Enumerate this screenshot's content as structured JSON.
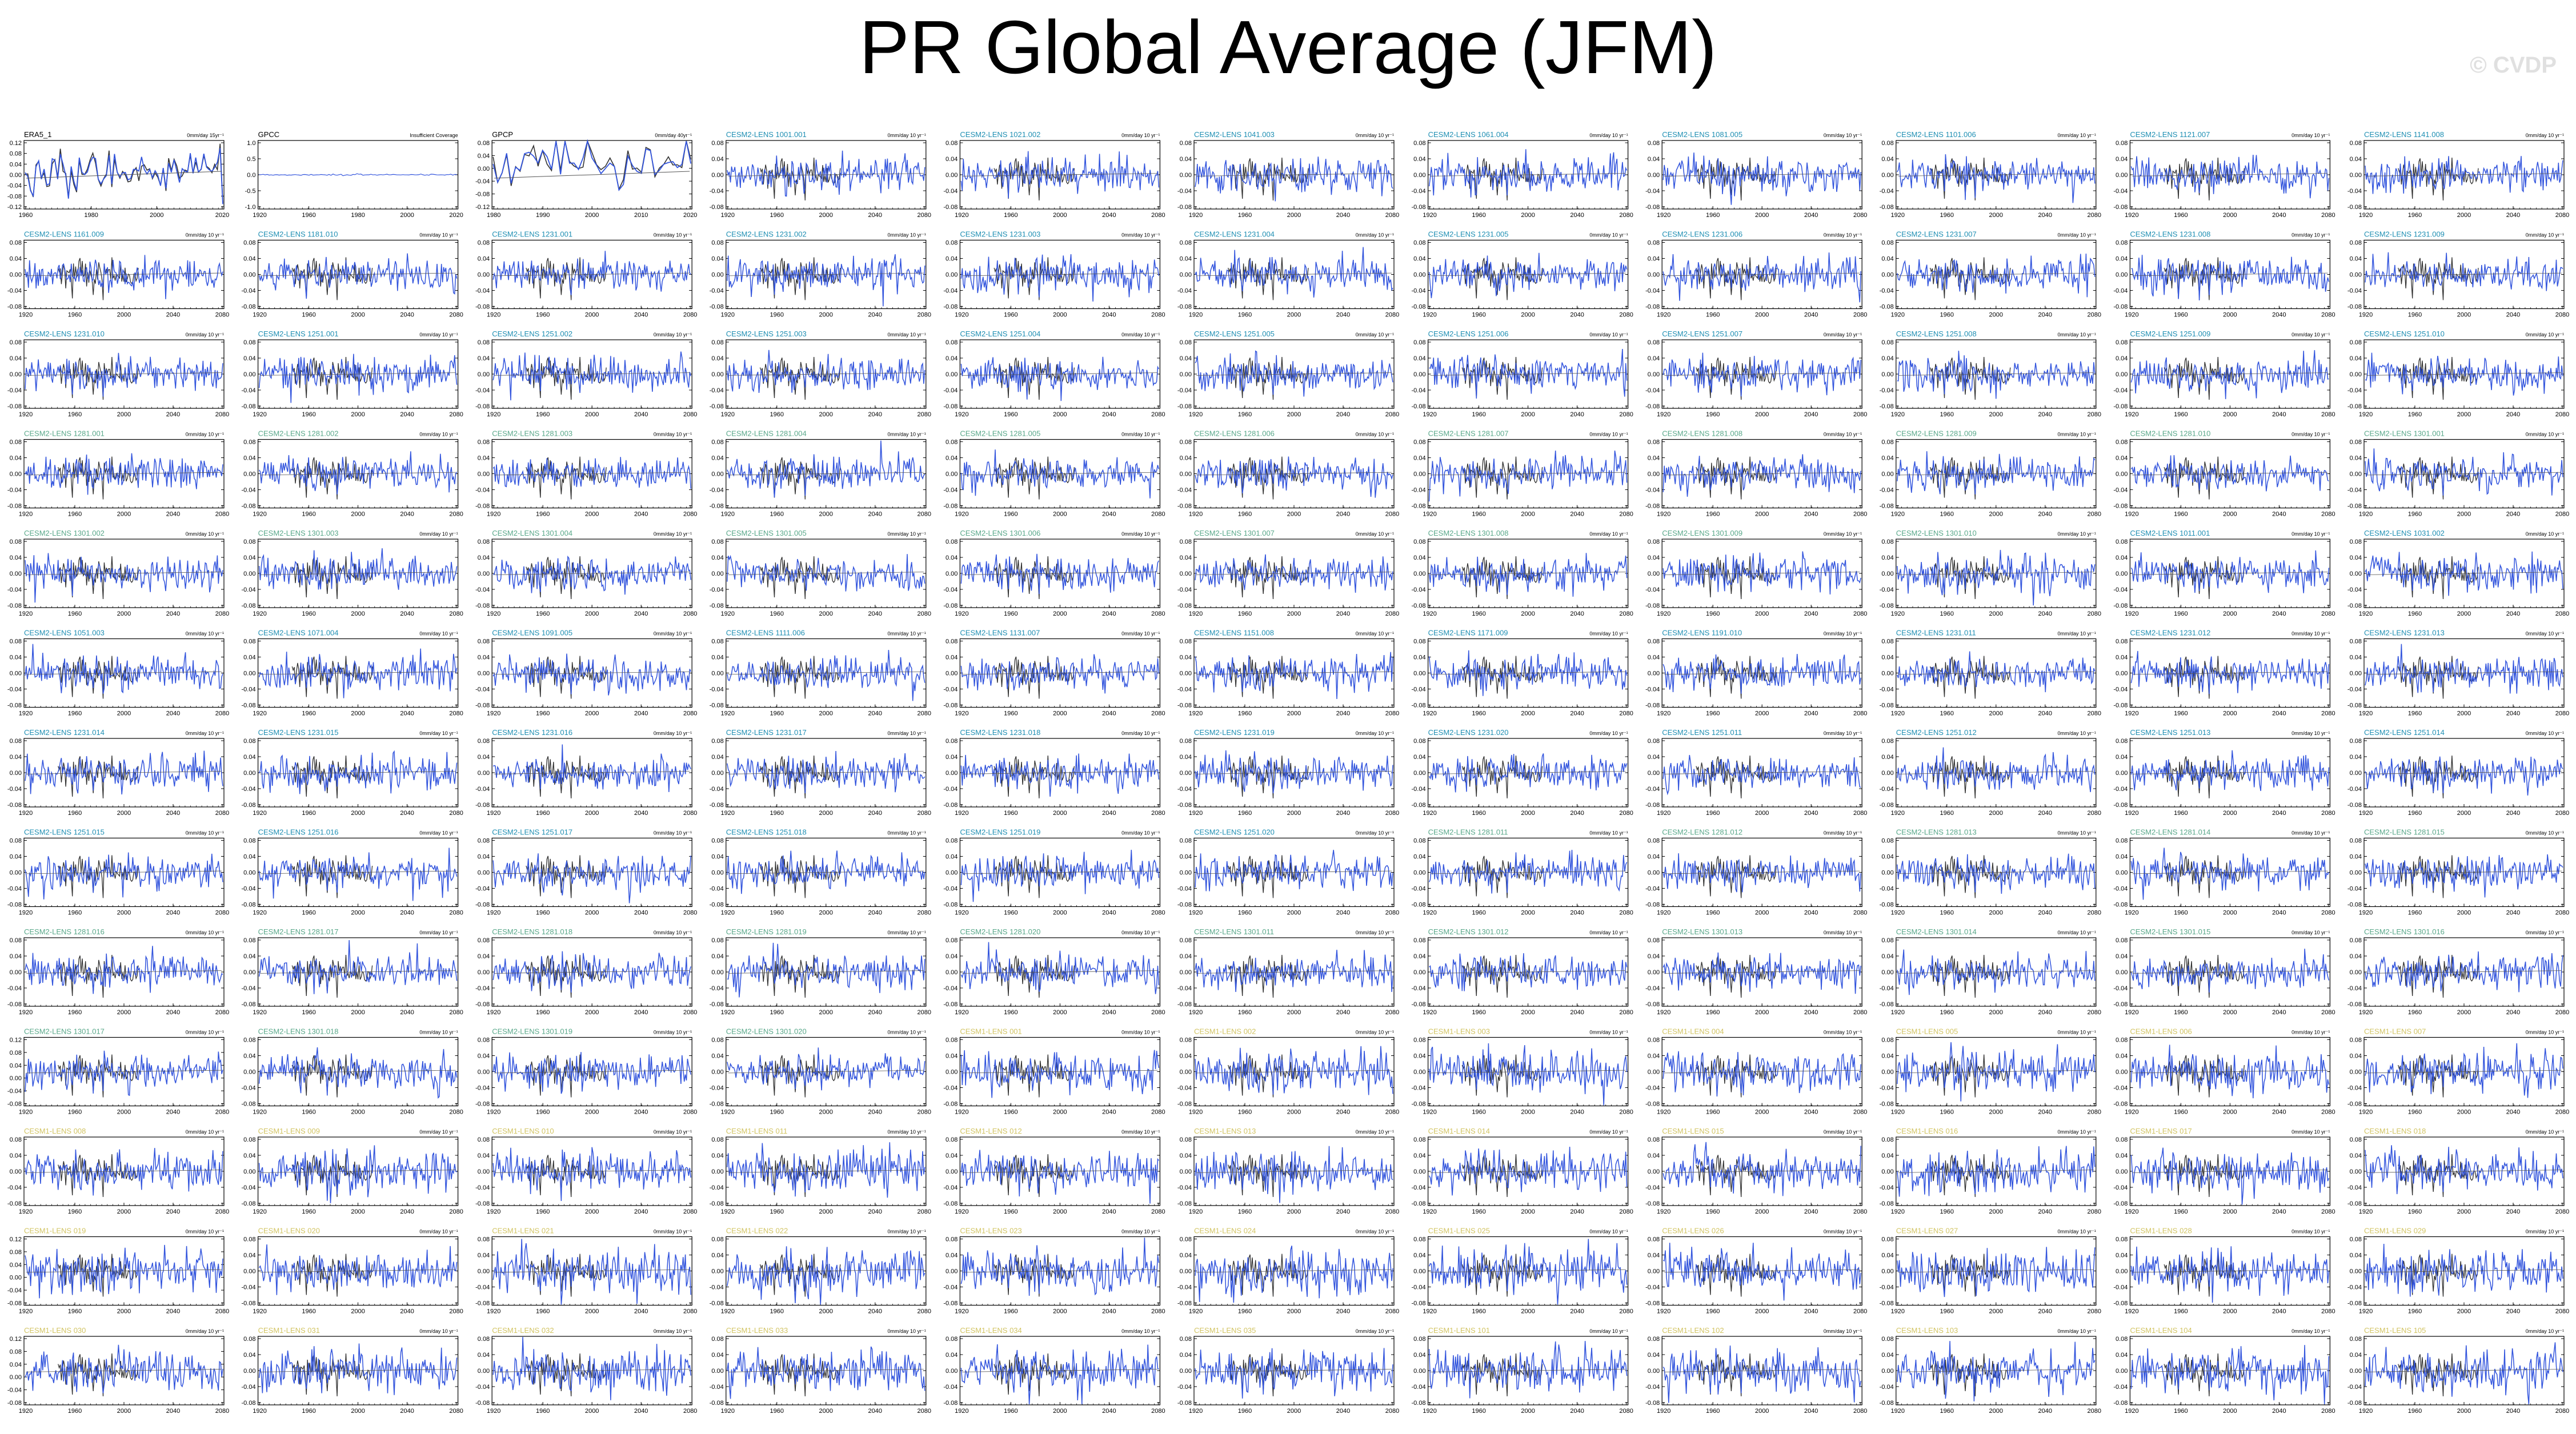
{
  "title": "PR Global Average (JFM)",
  "watermark": "© CVDP",
  "colors": {
    "model_line": "#3355dd",
    "obs_line": "#333333",
    "obs_title": "#000000",
    "lens2_title": "#1f8fb3",
    "lens2_smbb_title": "#59a88a",
    "lens1_title": "#d2c463",
    "axis": "#000000",
    "trend_line": "#555555"
  },
  "units_label": "0mm/day 10 yr⁻¹",
  "observations": [
    {
      "name": "ERA5_1",
      "units": "0mm/day 15yr⁻¹",
      "x_ticks": [
        "1960",
        "1980",
        "2000",
        "2020"
      ],
      "y_ticks": [
        "0.12",
        "0.08",
        "0.04",
        "0.00",
        "-0.04",
        "-0.08",
        "-0.12"
      ],
      "note": ""
    },
    {
      "name": "GPCC",
      "units": "Insufficient Coverage",
      "x_ticks": [
        "1920",
        "1960",
        "1980",
        "2000",
        "2020"
      ],
      "y_ticks": [
        "1.0",
        "0.5",
        "0.0",
        "-0.5",
        "-1.0"
      ],
      "note": ""
    },
    {
      "name": "GPCP",
      "units": "0mm/day 40yr⁻¹",
      "x_ticks": [
        "1980",
        "1990",
        "2000",
        "2010",
        "2020"
      ],
      "y_ticks": [
        "0.08",
        "0.04",
        "0.00",
        "-0.04",
        "-0.08",
        "-0.12"
      ],
      "note": ""
    }
  ],
  "model_x_ticks": [
    "1920",
    "1960",
    "2000",
    "2040",
    "2080"
  ],
  "model_y_ticks": [
    "0.08",
    "0.04",
    "0.00",
    "-0.04",
    "-0.08"
  ],
  "model_y_ticks_alt": [
    "0.12",
    "0.08",
    "0.04",
    "0.00",
    "-0.04",
    "-0.08"
  ],
  "model_panels": [
    "CESM2-LENS 1001.001",
    "CESM2-LENS 1021.002",
    "CESM2-LENS 1041.003",
    "CESM2-LENS 1061.004",
    "CESM2-LENS 1081.005",
    "CESM2-LENS 1101.006",
    "CESM2-LENS 1121.007",
    "CESM2-LENS 1141.008",
    "CESM2-LENS 1161.009",
    "CESM2-LENS 1181.010",
    "CESM2-LENS 1231.001",
    "CESM2-LENS 1231.002",
    "CESM2-LENS 1231.003",
    "CESM2-LENS 1231.004",
    "CESM2-LENS 1231.005",
    "CESM2-LENS 1231.006",
    "CESM2-LENS 1231.007",
    "CESM2-LENS 1231.008",
    "CESM2-LENS 1231.009",
    "CESM2-LENS 1231.010",
    "CESM2-LENS 1251.001",
    "CESM2-LENS 1251.002",
    "CESM2-LENS 1251.003",
    "CESM2-LENS 1251.004",
    "CESM2-LENS 1251.005",
    "CESM2-LENS 1251.006",
    "CESM2-LENS 1251.007",
    "CESM2-LENS 1251.008",
    "CESM2-LENS 1251.009",
    "CESM2-LENS 1251.010",
    "CESM2-LENS 1281.001",
    "CESM2-LENS 1281.002",
    "CESM2-LENS 1281.003",
    "CESM2-LENS 1281.004",
    "CESM2-LENS 1281.005",
    "CESM2-LENS 1281.006",
    "CESM2-LENS 1281.007",
    "CESM2-LENS 1281.008",
    "CESM2-LENS 1281.009",
    "CESM2-LENS 1281.010",
    "CESM2-LENS 1301.001",
    "CESM2-LENS 1301.002",
    "CESM2-LENS 1301.003",
    "CESM2-LENS 1301.004",
    "CESM2-LENS 1301.005",
    "CESM2-LENS 1301.006",
    "CESM2-LENS 1301.007",
    "CESM2-LENS 1301.008",
    "CESM2-LENS 1301.009",
    "CESM2-LENS 1301.010",
    "CESM2-LENS 1011.001",
    "CESM2-LENS 1031.002",
    "CESM2-LENS 1051.003",
    "CESM2-LENS 1071.004",
    "CESM2-LENS 1091.005",
    "CESM2-LENS 1111.006",
    "CESM2-LENS 1131.007",
    "CESM2-LENS 1151.008",
    "CESM2-LENS 1171.009",
    "CESM2-LENS 1191.010",
    "CESM2-LENS 1231.011",
    "CESM2-LENS 1231.012",
    "CESM2-LENS 1231.013",
    "CESM2-LENS 1231.014",
    "CESM2-LENS 1231.015",
    "CESM2-LENS 1231.016",
    "CESM2-LENS 1231.017",
    "CESM2-LENS 1231.018",
    "CESM2-LENS 1231.019",
    "CESM2-LENS 1231.020",
    "CESM2-LENS 1251.011",
    "CESM2-LENS 1251.012",
    "CESM2-LENS 1251.013",
    "CESM2-LENS 1251.014",
    "CESM2-LENS 1251.015",
    "CESM2-LENS 1251.016",
    "CESM2-LENS 1251.017",
    "CESM2-LENS 1251.018",
    "CESM2-LENS 1251.019",
    "CESM2-LENS 1251.020",
    "CESM2-LENS 1281.011",
    "CESM2-LENS 1281.012",
    "CESM2-LENS 1281.013",
    "CESM2-LENS 1281.014",
    "CESM2-LENS 1281.015",
    "CESM2-LENS 1281.016",
    "CESM2-LENS 1281.017",
    "CESM2-LENS 1281.018",
    "CESM2-LENS 1281.019",
    "CESM2-LENS 1281.020",
    "CESM2-LENS 1301.011",
    "CESM2-LENS 1301.012",
    "CESM2-LENS 1301.013",
    "CESM2-LENS 1301.014",
    "CESM2-LENS 1301.015",
    "CESM2-LENS 1301.016",
    "CESM2-LENS 1301.017",
    "CESM2-LENS 1301.018",
    "CESM2-LENS 1301.019",
    "CESM2-LENS 1301.020",
    "CESM1-LENS 001",
    "CESM1-LENS 002",
    "CESM1-LENS 003",
    "CESM1-LENS 004",
    "CESM1-LENS 005",
    "CESM1-LENS 006",
    "CESM1-LENS 007",
    "CESM1-LENS 008",
    "CESM1-LENS 009",
    "CESM1-LENS 010",
    "CESM1-LENS 011",
    "CESM1-LENS 012",
    "CESM1-LENS 013",
    "CESM1-LENS 014",
    "CESM1-LENS 015",
    "CESM1-LENS 016",
    "CESM1-LENS 017",
    "CESM1-LENS 018",
    "CESM1-LENS 019",
    "CESM1-LENS 020",
    "CESM1-LENS 021",
    "CESM1-LENS 022",
    "CESM1-LENS 023",
    "CESM1-LENS 024",
    "CESM1-LENS 025",
    "CESM1-LENS 026",
    "CESM1-LENS 027",
    "CESM1-LENS 028",
    "CESM1-LENS 029",
    "CESM1-LENS 030",
    "CESM1-LENS 031",
    "CESM1-LENS 032",
    "CESM1-LENS 033",
    "CESM1-LENS 034",
    "CESM1-LENS 035",
    "CESM1-LENS 101",
    "CESM1-LENS 102",
    "CESM1-LENS 103",
    "CESM1-LENS 104",
    "CESM1-LENS 105"
  ],
  "chart_data": {
    "type": "line",
    "title": "PR Global Average (JFM)",
    "layout": "grid of 13 rows x 11 columns of small time-series panels",
    "panel_count": 143,
    "x_range_models": [
      1920,
      2100
    ],
    "y_range_models": [
      -0.08,
      0.08
    ],
    "ylim_obs_era5": [
      -0.12,
      0.12
    ],
    "ylim_obs_gpcp": [
      -0.12,
      0.08
    ],
    "ylim_obs_gpcc": [
      -1.0,
      1.0
    ],
    "x_range_era5": [
      1950,
      2023
    ],
    "x_range_gpcp": [
      1979,
      2023
    ],
    "series_note": "Blue line = individual ensemble member JFM global-mean precipitation anomaly; grey line = observed anomaly overlay; thin line = linear trend",
    "grid": false
  }
}
